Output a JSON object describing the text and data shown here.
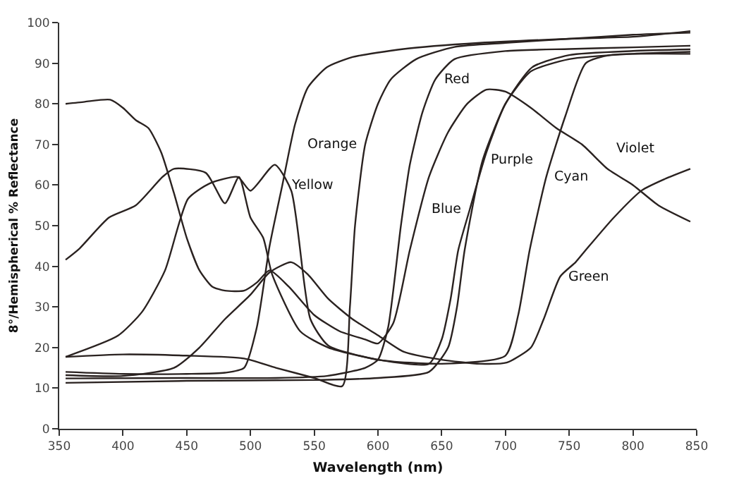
{
  "chart_data": {
    "type": "line",
    "xlabel": "Wavelength (nm)",
    "ylabel": "8°/Hemispherical % Reflectance",
    "xlim": [
      350,
      850
    ],
    "ylim": [
      0,
      100
    ],
    "xticks": [
      350,
      400,
      450,
      500,
      550,
      600,
      650,
      700,
      750,
      800,
      850
    ],
    "yticks": [
      0,
      10,
      20,
      30,
      40,
      50,
      60,
      70,
      80,
      90,
      100
    ],
    "grid": false,
    "marker": "none",
    "line_style": "solid",
    "series": [
      {
        "color": "#2a2220",
        "x": [
          355,
          400,
          450,
          480,
          495,
          505,
          515,
          525,
          535,
          545,
          560,
          580,
          620,
          680,
          750,
          800,
          845
        ],
        "values": [
          14,
          13.5,
          13.5,
          13.8,
          15,
          25,
          45,
          60,
          75,
          84,
          89,
          91.5,
          93.5,
          95,
          96,
          96.5,
          97.9
        ]
      },
      {
        "color": "#2a2220",
        "x": [
          355,
          400,
          450,
          495,
          520,
          550,
          572,
          578,
          582,
          590,
          600,
          610,
          630,
          660,
          700,
          750,
          800,
          845
        ],
        "values": [
          17.7,
          18.3,
          18,
          17.3,
          15,
          12.5,
          10.5,
          30,
          50,
          70,
          80,
          86,
          91,
          94,
          95,
          96,
          97,
          97.5
        ]
      },
      {
        "color": "#2a2220",
        "x": [
          355,
          450,
          520,
          560,
          590,
          600,
          608,
          618,
          625,
          635,
          645,
          660,
          700,
          750,
          800,
          845
        ],
        "values": [
          12.4,
          12.5,
          12.5,
          13,
          15,
          17,
          25,
          50,
          65,
          78,
          86,
          91,
          93,
          93.5,
          93.9,
          94.3
        ]
      },
      {
        "color": "#2a2220",
        "x": [
          355,
          370,
          390,
          400,
          410,
          420,
          430,
          440,
          450,
          460,
          470,
          480,
          495,
          505,
          515,
          530,
          550,
          570,
          590,
          600,
          612,
          625,
          640,
          655,
          670,
          685,
          700,
          720,
          740,
          760,
          780,
          800,
          820,
          845
        ],
        "values": [
          80,
          80.5,
          81,
          79,
          76,
          74,
          68,
          58,
          47,
          39,
          35,
          34,
          34,
          36,
          39,
          35,
          28,
          24,
          22,
          21,
          26,
          44,
          62,
          73,
          80,
          83.5,
          83,
          79,
          74,
          70,
          64,
          60,
          55,
          51
        ]
      },
      {
        "color": "#2a2220",
        "x": [
          355,
          366,
          389,
          410,
          431,
          440,
          465,
          480,
          491,
          500,
          510,
          517,
          539,
          561,
          600,
          640,
          650,
          657,
          663,
          672,
          685,
          700,
          720,
          750,
          800,
          845
        ],
        "values": [
          41.6,
          44.4,
          52,
          55,
          62,
          64,
          63,
          55.5,
          62,
          52,
          47,
          38,
          24,
          20,
          17,
          16,
          22,
          32,
          44,
          54,
          68,
          80,
          88,
          91,
          92.3,
          92.8
        ]
      },
      {
        "color": "#2a2220",
        "x": [
          355,
          450,
          550,
          600,
          640,
          655,
          662,
          668,
          682,
          700,
          721,
          750,
          800,
          845
        ],
        "values": [
          11.3,
          11.8,
          12,
          12.5,
          14,
          20,
          30,
          44,
          66,
          80,
          89,
          92,
          93,
          93.4
        ]
      },
      {
        "color": "#2a2220",
        "x": [
          355,
          396,
          415,
          433,
          451,
          468,
          490,
          500,
          519,
          532,
          547,
          561,
          600,
          650,
          700,
          710,
          719,
          732,
          747,
          763,
          782,
          845
        ],
        "values": [
          17.7,
          22.9,
          28.8,
          39,
          56.6,
          60.4,
          62,
          58.6,
          65,
          58.6,
          27,
          20.5,
          17,
          16,
          18,
          28,
          44,
          62,
          77,
          90,
          92,
          92.3
        ]
      },
      {
        "color": "#2a2220",
        "x": [
          355,
          400,
          440,
          460,
          480,
          500,
          515,
          532,
          545,
          561,
          580,
          600,
          620,
          650,
          680,
          701,
          720,
          730,
          743,
          755,
          763,
          785,
          807,
          825,
          845
        ],
        "values": [
          13.2,
          13,
          15,
          20,
          27,
          33,
          38.5,
          41,
          38,
          32,
          27,
          23,
          19,
          17,
          16,
          16.3,
          20,
          27,
          37.5,
          41,
          44,
          52,
          58.7,
          61.5,
          64
        ]
      }
    ],
    "annotations": [
      {
        "text": "Yellow",
        "x": 525,
        "y": 60
      },
      {
        "text": "Orange",
        "x": 590,
        "y": 70
      },
      {
        "text": "Red",
        "x": 645,
        "y": 86
      },
      {
        "text": "Violet",
        "x": 780,
        "y": 64
      },
      {
        "text": "Purple",
        "x": 682,
        "y": 66
      },
      {
        "text": "Cyan",
        "x": 732,
        "y": 62
      },
      {
        "text": "Blue",
        "x": 672,
        "y": 54
      },
      {
        "text": "Green",
        "x": 743,
        "y": 37.5
      }
    ]
  }
}
